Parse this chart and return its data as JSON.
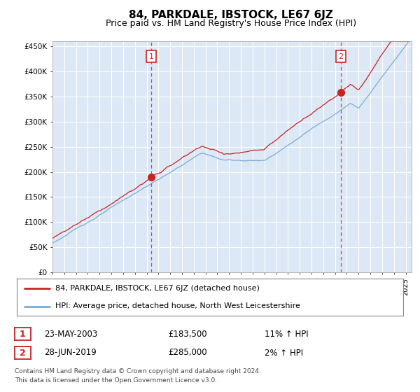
{
  "title": "84, PARKDALE, IBSTOCK, LE67 6JZ",
  "subtitle": "Price paid vs. HM Land Registry's House Price Index (HPI)",
  "ylim": [
    0,
    460000
  ],
  "xlim_start": 1995.0,
  "xlim_end": 2025.5,
  "legend_line1": "84, PARKDALE, IBSTOCK, LE67 6JZ (detached house)",
  "legend_line2": "HPI: Average price, detached house, North West Leicestershire",
  "marker1_year": 2003.38,
  "marker1_value": 183500,
  "marker1_label": "1",
  "marker1_date": "23-MAY-2003",
  "marker1_price": "£183,500",
  "marker1_hpi": "11% ↑ HPI",
  "marker2_year": 2019.5,
  "marker2_value": 285000,
  "marker2_label": "2",
  "marker2_date": "28-JUN-2019",
  "marker2_price": "£285,000",
  "marker2_hpi": "2% ↑ HPI",
  "footer_line1": "Contains HM Land Registry data © Crown copyright and database right 2024.",
  "footer_line2": "This data is licensed under the Open Government Licence v3.0.",
  "hpi_color": "#7aabdb",
  "price_color": "#cc2222",
  "dashed_color": "#dd4444",
  "grid_color": "#cccccc",
  "background_color": "#ffffff",
  "plot_bg_color": "#dce8f5"
}
